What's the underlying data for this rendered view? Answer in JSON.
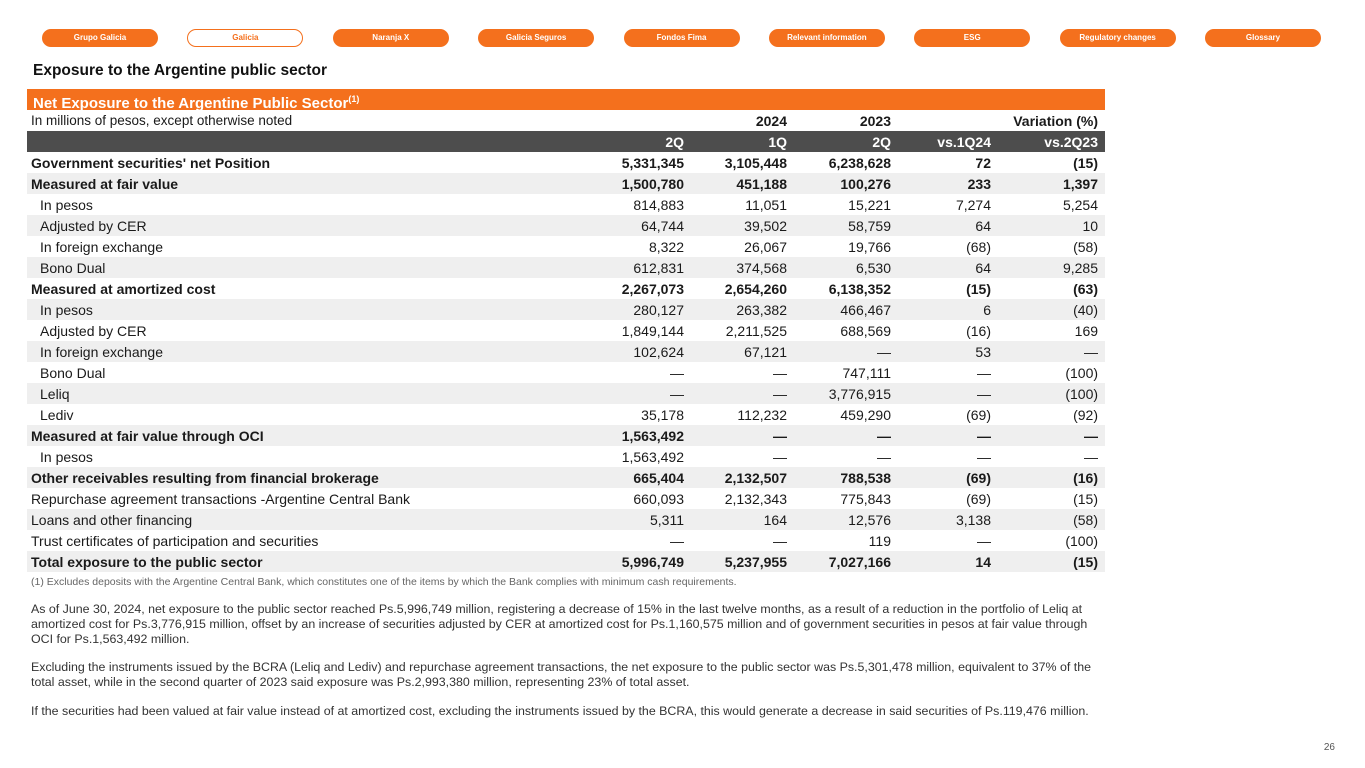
{
  "colors": {
    "accent": "#F4701D",
    "header_bar": "#4D4D4D",
    "stripe": "#EFEFEF"
  },
  "nav": {
    "items": [
      {
        "label": "Grupo Galicia",
        "active": false
      },
      {
        "label": "Galicia",
        "active": true
      },
      {
        "label": "Naranja X",
        "active": false
      },
      {
        "label": "Galicia Seguros",
        "active": false
      },
      {
        "label": "Fondos Fima",
        "active": false
      },
      {
        "label": "Relevant information",
        "active": false
      },
      {
        "label": "ESG",
        "active": false
      },
      {
        "label": "Regulatory changes",
        "active": false
      },
      {
        "label": "Glossary",
        "active": false
      }
    ]
  },
  "page": {
    "title": "Exposure to the Argentine public sector",
    "page_number": "26"
  },
  "table": {
    "banner": "Net Exposure to the Argentine Public Sector",
    "banner_superscript": "(1)",
    "subtitle": "In millions of pesos, except otherwise noted",
    "year_headers": [
      "2024",
      "2023",
      "Variation (%)"
    ],
    "column_headers": [
      "2Q",
      "1Q",
      "2Q",
      "vs.1Q24",
      "vs.2Q23"
    ],
    "rows": [
      {
        "label": "Government securities' net Position",
        "bold": true,
        "indent": false,
        "values": [
          "5,331,345",
          "3,105,448",
          "6,238,628",
          "72",
          "(15)"
        ]
      },
      {
        "label": "Measured at fair value",
        "bold": true,
        "indent": false,
        "values": [
          "1,500,780",
          "451,188",
          "100,276",
          "233",
          "1,397"
        ]
      },
      {
        "label": "In pesos",
        "bold": false,
        "indent": true,
        "values": [
          "814,883",
          "11,051",
          "15,221",
          "7,274",
          "5,254"
        ]
      },
      {
        "label": "Adjusted by CER",
        "bold": false,
        "indent": true,
        "values": [
          "64,744",
          "39,502",
          "58,759",
          "64",
          "10"
        ]
      },
      {
        "label": "In foreign exchange",
        "bold": false,
        "indent": true,
        "values": [
          "8,322",
          "26,067",
          "19,766",
          "(68)",
          "(58)"
        ]
      },
      {
        "label": "Bono Dual",
        "bold": false,
        "indent": true,
        "values": [
          "612,831",
          "374,568",
          "6,530",
          "64",
          "9,285"
        ]
      },
      {
        "label": "Measured at amortized cost",
        "bold": true,
        "indent": false,
        "values": [
          "2,267,073",
          "2,654,260",
          "6,138,352",
          "(15)",
          "(63)"
        ]
      },
      {
        "label": "In pesos",
        "bold": false,
        "indent": true,
        "values": [
          "280,127",
          "263,382",
          "466,467",
          "6",
          "(40)"
        ]
      },
      {
        "label": "Adjusted by CER",
        "bold": false,
        "indent": true,
        "values": [
          "1,849,144",
          "2,211,525",
          "688,569",
          "(16)",
          "169"
        ]
      },
      {
        "label": "In foreign exchange",
        "bold": false,
        "indent": true,
        "values": [
          "102,624",
          "67,121",
          "—",
          "53",
          "—"
        ]
      },
      {
        "label": "Bono Dual",
        "bold": false,
        "indent": true,
        "values": [
          "—",
          "—",
          "747,111",
          "—",
          "(100)"
        ]
      },
      {
        "label": "Leliq",
        "bold": false,
        "indent": true,
        "values": [
          "—",
          "—",
          "3,776,915",
          "—",
          "(100)"
        ]
      },
      {
        "label": "Lediv",
        "bold": false,
        "indent": true,
        "values": [
          "35,178",
          "112,232",
          "459,290",
          "(69)",
          "(92)"
        ]
      },
      {
        "label": "Measured at fair value through OCI",
        "bold": true,
        "indent": false,
        "values": [
          "1,563,492",
          "—",
          "—",
          "—",
          "—"
        ]
      },
      {
        "label": "In pesos",
        "bold": false,
        "indent": true,
        "values": [
          "1,563,492",
          "—",
          "—",
          "—",
          "—"
        ]
      },
      {
        "label": "Other receivables resulting from financial brokerage",
        "bold": true,
        "indent": false,
        "values": [
          "665,404",
          "2,132,507",
          "788,538",
          "(69)",
          "(16)"
        ]
      },
      {
        "label": "Repurchase agreement transactions -Argentine Central Bank",
        "bold": false,
        "indent": false,
        "values": [
          "660,093",
          "2,132,343",
          "775,843",
          "(69)",
          "(15)"
        ]
      },
      {
        "label": "Loans and other financing",
        "bold": false,
        "indent": false,
        "values": [
          "5,311",
          "164",
          "12,576",
          "3,138",
          "(58)"
        ]
      },
      {
        "label": "Trust certificates of participation and securities",
        "bold": false,
        "indent": false,
        "values": [
          "—",
          "—",
          "119",
          "—",
          "(100)"
        ]
      },
      {
        "label": "Total exposure to the public sector",
        "bold": true,
        "indent": false,
        "values": [
          "5,996,749",
          "5,237,955",
          "7,027,166",
          "14",
          "(15)"
        ]
      }
    ]
  },
  "footnote": "(1) Excludes deposits with the Argentine Central Bank, which constitutes one of the items by which the Bank complies with minimum cash requirements.",
  "paragraphs": [
    "As of June 30, 2024, net exposure to the public sector reached Ps.5,996,749 million, registering a decrease of 15% in the last twelve months, as a result of a reduction in the portfolio of Leliq at amortized cost for Ps.3,776,915 million, offset by an increase of securities adjusted by CER at amortized cost for Ps.1,160,575 million and of government securities in pesos at fair value through OCI for Ps.1,563,492 million.",
    "Excluding the instruments issued by the BCRA (Leliq and Lediv) and repurchase agreement transactions, the net exposure to the public sector was Ps.5,301,478 million, equivalent to 37% of the total asset, while in the second quarter of 2023 said exposure was Ps.2,993,380 million, representing 23% of total asset.",
    "If the securities had been valued at fair value instead of at amortized cost, excluding the instruments issued by the BCRA, this would generate a decrease in said securities of Ps.119,476 million."
  ]
}
